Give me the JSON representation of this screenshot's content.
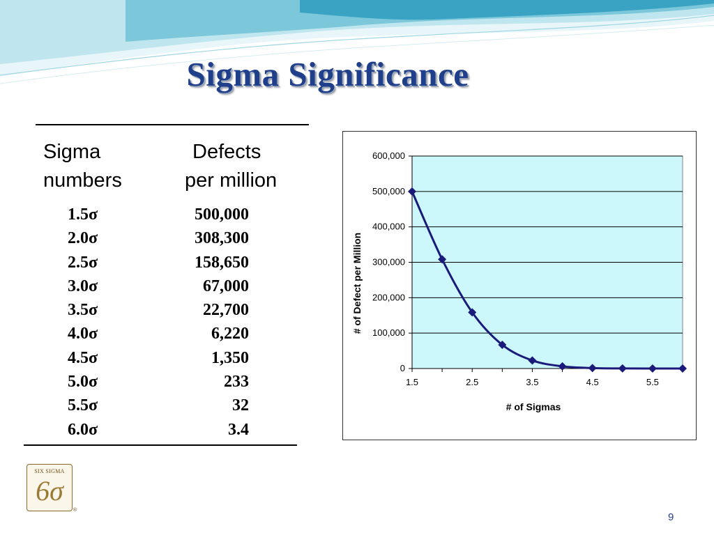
{
  "title": "Sigma Significance",
  "table": {
    "header_sigma": [
      "Sigma",
      "numbers"
    ],
    "header_defects": [
      "Defects",
      "per million"
    ],
    "rows": [
      {
        "sigma": "1.5σ",
        "defects": "500,000"
      },
      {
        "sigma": "2.0σ",
        "defects": "308,300"
      },
      {
        "sigma": "2.5σ",
        "defects": "158,650"
      },
      {
        "sigma": "3.0σ",
        "defects": "67,000"
      },
      {
        "sigma": "3.5σ",
        "defects": "22,700"
      },
      {
        "sigma": "4.0σ",
        "defects": "6,220"
      },
      {
        "sigma": "4.5σ",
        "defects": "1,350"
      },
      {
        "sigma": "5.0σ",
        "defects": "233"
      },
      {
        "sigma": "5.5σ",
        "defects": "32"
      },
      {
        "sigma": "6.0σ",
        "defects": "3.4"
      }
    ]
  },
  "chart_data": {
    "type": "line",
    "x": [
      1.5,
      2.0,
      2.5,
      3.0,
      3.5,
      4.0,
      4.5,
      5.0,
      5.5,
      6.0
    ],
    "series": [
      {
        "values": [
          500000,
          308300,
          158650,
          67000,
          22700,
          6220,
          1350,
          233,
          32,
          3.4
        ]
      }
    ],
    "xlabel": "# of Sigmas",
    "ylabel": "# of Defect per Million",
    "xlim": [
      1.5,
      6.0
    ],
    "ylim": [
      0,
      600000
    ],
    "x_ticks": [
      "1.5",
      "2.5",
      "3.5",
      "4.5",
      "5.5"
    ],
    "y_ticks": [
      "0",
      "100,000",
      "200,000",
      "300,000",
      "400,000",
      "500,000",
      "600,000"
    ],
    "grid": true,
    "marker": "diamond",
    "plot_background": "#ccf8fb",
    "line_color": "#1a1a7a"
  },
  "logo": {
    "text": "SIX SIGMA",
    "glyph": "6σ",
    "registered": "®"
  },
  "page_number": "9",
  "colors": {
    "title": "#1f3f8a",
    "wave_light": "#cdeef4",
    "wave_mid": "#7cc7da",
    "wave_dark": "#3aa3c4"
  }
}
